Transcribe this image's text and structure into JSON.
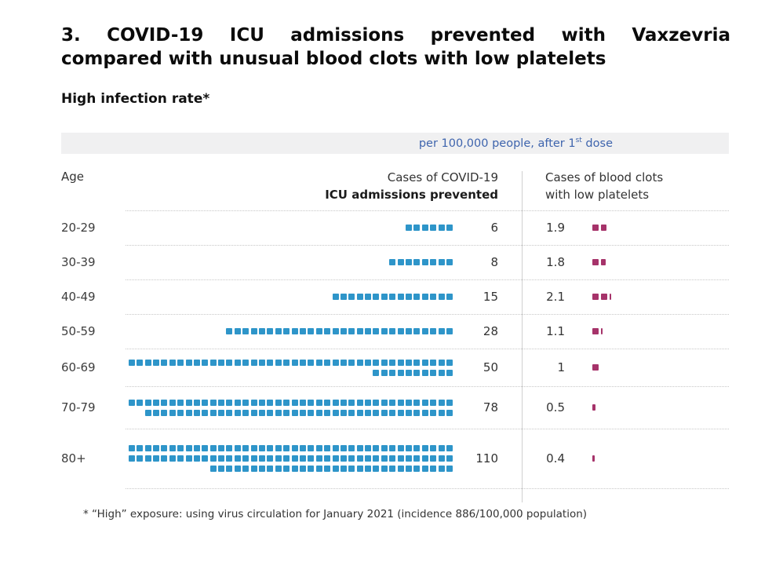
{
  "title": {
    "line1": "3. COVID-19 ICU admissions prevented with Vaxzevria",
    "line2": "compared with unusual blood clots with low platelets"
  },
  "subtitle": "High infection rate*",
  "unit_banner": {
    "prefix": "per 100,000 people, after 1",
    "superscript": "st",
    "suffix": " dose"
  },
  "columns": {
    "age": "Age",
    "icu_line1": "Cases of COVID-19",
    "icu_line2": "ICU admissions prevented",
    "clots_line1": "Cases of blood clots",
    "clots_line2": "with low platelets"
  },
  "footnote": "* “High” exposure: using virus circulation for January 2021 (incidence 886/100,000 population)",
  "colors": {
    "icu_square": "#2e95c9",
    "clot_square": "#a6336a",
    "banner_bg": "#f0f0f1",
    "banner_text": "#3e64ad"
  },
  "chart_data": {
    "type": "pictogram-table",
    "unit": "per 100,000 people, after 1st dose",
    "categories": [
      "20-29",
      "30-39",
      "40-49",
      "50-59",
      "60-69",
      "70-79",
      "80+"
    ],
    "series": [
      {
        "name": "Cases of COVID-19 ICU admissions prevented",
        "values": [
          6,
          8,
          15,
          28,
          50,
          78,
          110
        ]
      },
      {
        "name": "Cases of blood clots with low platelets",
        "values": [
          1.9,
          1.8,
          2.1,
          1.1,
          1,
          0.5,
          0.4
        ]
      }
    ],
    "rows": [
      {
        "age": "20-29",
        "icu": 6,
        "icu_label": "6",
        "clots": 1.9,
        "clots_label": "1.9"
      },
      {
        "age": "30-39",
        "icu": 8,
        "icu_label": "8",
        "clots": 1.8,
        "clots_label": "1.8"
      },
      {
        "age": "40-49",
        "icu": 15,
        "icu_label": "15",
        "clots": 2.1,
        "clots_label": "2.1"
      },
      {
        "age": "50-59",
        "icu": 28,
        "icu_label": "28",
        "clots": 1.1,
        "clots_label": "1.1"
      },
      {
        "age": "60-69",
        "icu": 50,
        "icu_label": "50",
        "clots": 1,
        "clots_label": "1"
      },
      {
        "age": "70-79",
        "icu": 78,
        "icu_label": "78",
        "clots": 0.5,
        "clots_label": "0.5"
      },
      {
        "age": "80+",
        "icu": 110,
        "icu_label": "110",
        "clots": 0.4,
        "clots_label": "0.4"
      }
    ],
    "squares_per_row_line": 40,
    "legend_position": "none",
    "grid": "dotted-row-separators"
  }
}
